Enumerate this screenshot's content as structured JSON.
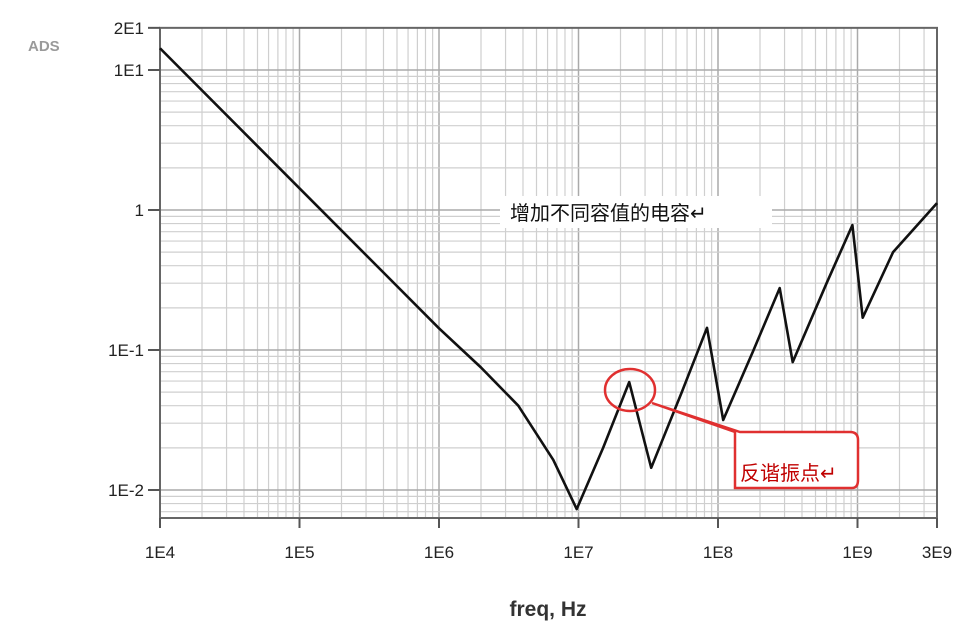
{
  "brand_label": "ADS",
  "chart_data": {
    "type": "line",
    "xlabel": "freq, Hz",
    "ylabel": "",
    "x_scale": "log",
    "y_scale": "log",
    "xlim": [
      10000,
      3000000000
    ],
    "ylim": [
      0.0063,
      20
    ],
    "grid": true,
    "x_ticks": [
      {
        "v": 10000.0,
        "label": "1E4"
      },
      {
        "v": 100000.0,
        "label": "1E5"
      },
      {
        "v": 1000000.0,
        "label": "1E6"
      },
      {
        "v": 10000000.0,
        "label": "1E7"
      },
      {
        "v": 100000000.0,
        "label": "1E8"
      },
      {
        "v": 1000000000.0,
        "label": "1E9"
      },
      {
        "v": 3000000000.0,
        "label": "3E9"
      }
    ],
    "y_ticks": [
      {
        "v": 20,
        "label": "2E1"
      },
      {
        "v": 10,
        "label": "1E1"
      },
      {
        "v": 1,
        "label": "1"
      },
      {
        "v": 0.1,
        "label": "1E-1"
      },
      {
        "v": 0.01,
        "label": "1E-2"
      }
    ],
    "series": [
      {
        "color": "#111111",
        "x": [
          10000.0,
          100000.0,
          1000000.0,
          2000000.0,
          3700000.0,
          6600000.0,
          9700000.0,
          15000000.0,
          23100000.0,
          33200000.0,
          55000000.0,
          83400000.0,
          109000000.0,
          180000000.0,
          277000000.0,
          343000000.0,
          600000000.0,
          920000000.0,
          1090000000.0,
          1800000000.0,
          3000000000.0
        ],
        "y": [
          14.3,
          1.43,
          0.143,
          0.075,
          0.04,
          0.0164,
          0.0073,
          0.02,
          0.059,
          0.0144,
          0.05,
          0.144,
          0.0316,
          0.1,
          0.277,
          0.082,
          0.3,
          0.78,
          0.17,
          0.5,
          1.12
        ]
      }
    ],
    "annotations": [
      {
        "text": "增加不同容值的电容↵"
      },
      {
        "text": "反谐振点↵",
        "points_to": {
          "x": 23100000.0,
          "y": 0.059
        }
      }
    ]
  }
}
